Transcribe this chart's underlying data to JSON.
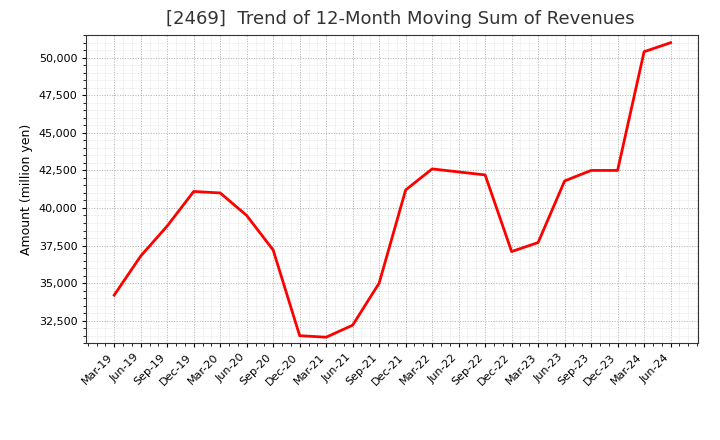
{
  "title": "[2469]  Trend of 12-Month Moving Sum of Revenues",
  "ylabel": "Amount (million yen)",
  "line_color": "#ff0000",
  "line_width": 2.0,
  "background_color": "#ffffff",
  "grid_color": "#999999",
  "x_labels": [
    "Mar-19",
    "Jun-19",
    "Sep-19",
    "Dec-19",
    "Mar-20",
    "Jun-20",
    "Sep-20",
    "Dec-20",
    "Mar-21",
    "Jun-21",
    "Sep-21",
    "Dec-21",
    "Mar-22",
    "Jun-22",
    "Sep-22",
    "Dec-22",
    "Mar-23",
    "Jun-23",
    "Sep-23",
    "Dec-23",
    "Mar-24",
    "Jun-24"
  ],
  "values": [
    34200,
    36800,
    38800,
    41100,
    41000,
    39500,
    37200,
    31500,
    31400,
    32200,
    35000,
    41200,
    42600,
    42400,
    42200,
    37100,
    37700,
    41800,
    42500,
    42500,
    50400,
    51000
  ],
  "ylim": [
    31000,
    51500
  ],
  "yticks": [
    32500,
    35000,
    37500,
    40000,
    42500,
    45000,
    47500,
    50000
  ],
  "title_fontsize": 13,
  "axis_fontsize": 9,
  "tick_fontsize": 8
}
